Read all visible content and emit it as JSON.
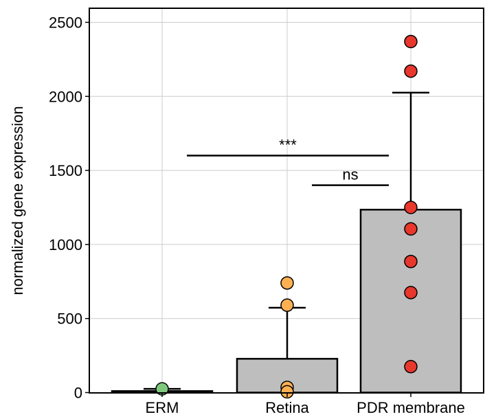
{
  "chart_data": {
    "type": "bar",
    "title": "",
    "xlabel": "",
    "ylabel": "normalized gene expression",
    "ylim": [
      0,
      2600
    ],
    "yticks": [
      0,
      500,
      1000,
      1500,
      2000,
      2500
    ],
    "grid": true,
    "categories": [
      "ERM",
      "Retina",
      "PDR membrane"
    ],
    "bars": [
      {
        "category": "ERM",
        "mean": 10,
        "sd": 15,
        "point_color": "#7fc97f",
        "points": [
          25
        ]
      },
      {
        "category": "Retina",
        "mean": 228,
        "sd": 345,
        "point_color": "#fdb052",
        "points": [
          740,
          590,
          35,
          5
        ]
      },
      {
        "category": "PDR membrane",
        "mean": 1235,
        "sd": 790,
        "point_color": "#e8372c",
        "points": [
          2370,
          2170,
          1250,
          1105,
          885,
          675,
          175
        ]
      }
    ],
    "colors": {
      "bar_fill": "#bebebe",
      "outline": "#000000",
      "grid": "#cccccc"
    },
    "annotations": [
      {
        "text": "***",
        "from": "ERM",
        "to": "PDR membrane",
        "y": 1600
      },
      {
        "text": "ns",
        "from": "Retina",
        "to": "PDR membrane",
        "y": 1400
      }
    ]
  }
}
